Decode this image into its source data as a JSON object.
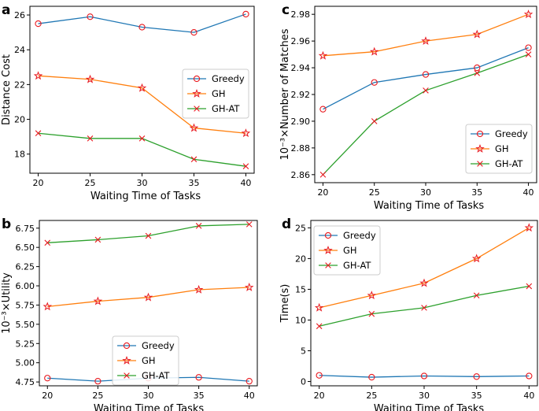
{
  "colors": {
    "Greedy": "#1f77b4",
    "GH": "#ff7f0e",
    "GH-AT": "#2ca02c",
    "marker": "#e8191f"
  },
  "chart_data": [
    {
      "panel": "a",
      "type": "line",
      "x": [
        20,
        25,
        30,
        35,
        40
      ],
      "xticks": [
        "20",
        "25",
        "30",
        "35",
        "40"
      ],
      "xlim": [
        19.2,
        40.8
      ],
      "ylim": [
        16.9,
        26.5
      ],
      "yticks": [
        18,
        20,
        22,
        24,
        26
      ],
      "ytick_labels": [
        "18",
        "20",
        "22",
        "24",
        "26"
      ],
      "xlabel": "Waiting Time of Tasks",
      "ylabel": "Distance Cost",
      "legend": "center-right",
      "series": [
        {
          "name": "Greedy",
          "marker": "o",
          "values": [
            25.5,
            25.9,
            25.3,
            25.0,
            26.05
          ]
        },
        {
          "name": "GH",
          "marker": "*",
          "values": [
            22.5,
            22.3,
            21.8,
            19.5,
            19.2
          ]
        },
        {
          "name": "GH-AT",
          "marker": "x",
          "values": [
            19.2,
            18.9,
            18.9,
            17.7,
            17.3
          ]
        }
      ]
    },
    {
      "panel": "c",
      "type": "line",
      "x": [
        20,
        25,
        30,
        35,
        40
      ],
      "xticks": [
        "20",
        "25",
        "30",
        "35",
        "40"
      ],
      "xlim": [
        19.2,
        40.8
      ],
      "ylim": [
        2.854,
        2.986
      ],
      "yticks": [
        2.86,
        2.88,
        2.9,
        2.92,
        2.94,
        2.96,
        2.98
      ],
      "ytick_labels": [
        "2.86",
        "2.88",
        "2.90",
        "2.92",
        "2.94",
        "2.96",
        "2.98"
      ],
      "xlabel": "Waiting Time of Tasks",
      "ylabel": "10⁻³×Number of Matches",
      "legend": "lower-right",
      "series": [
        {
          "name": "Greedy",
          "marker": "o",
          "values": [
            2.909,
            2.929,
            2.935,
            2.94,
            2.955
          ]
        },
        {
          "name": "GH",
          "marker": "*",
          "values": [
            2.949,
            2.952,
            2.96,
            2.965,
            2.98
          ]
        },
        {
          "name": "GH-AT",
          "marker": "x",
          "values": [
            2.86,
            2.9,
            2.923,
            2.936,
            2.95
          ]
        }
      ]
    },
    {
      "panel": "b",
      "type": "line",
      "x": [
        20,
        25,
        30,
        35,
        40
      ],
      "xticks": [
        "20",
        "25",
        "30",
        "35",
        "40"
      ],
      "xlim": [
        19.2,
        40.8
      ],
      "ylim": [
        4.7,
        6.85
      ],
      "yticks": [
        4.75,
        5.0,
        5.25,
        5.5,
        5.75,
        6.0,
        6.25,
        6.5,
        6.75
      ],
      "ytick_labels": [
        "4.75",
        "5.00",
        "5.25",
        "5.50",
        "5.75",
        "6.00",
        "6.25",
        "6.50",
        "6.75"
      ],
      "xlabel": "Waiting Time of Tasks",
      "ylabel": "10⁻³×Utility",
      "legend": "bottom-center",
      "series": [
        {
          "name": "Greedy",
          "marker": "o",
          "values": [
            4.8,
            4.76,
            4.8,
            4.81,
            4.76
          ]
        },
        {
          "name": "GH",
          "marker": "*",
          "values": [
            5.73,
            5.8,
            5.85,
            5.95,
            5.98
          ]
        },
        {
          "name": "GH-AT",
          "marker": "x",
          "values": [
            6.56,
            6.6,
            6.65,
            6.78,
            6.8
          ]
        }
      ]
    },
    {
      "panel": "d",
      "type": "line",
      "x": [
        20,
        25,
        30,
        35,
        40
      ],
      "xticks": [
        "20",
        "25",
        "30",
        "35",
        "40"
      ],
      "xlim": [
        19.2,
        40.8
      ],
      "ylim": [
        -0.7,
        26.2
      ],
      "yticks": [
        0,
        5,
        10,
        15,
        20,
        25
      ],
      "ytick_labels": [
        "0",
        "5",
        "10",
        "15",
        "20",
        "25"
      ],
      "xlabel": "Waiting Time of Tasks",
      "ylabel": "Time(s)",
      "legend": "top-left",
      "series": [
        {
          "name": "Greedy",
          "marker": "o",
          "values": [
            1.0,
            0.7,
            0.9,
            0.8,
            0.9
          ]
        },
        {
          "name": "GH",
          "marker": "*",
          "values": [
            12.0,
            14.0,
            16.0,
            20.0,
            25.0
          ]
        },
        {
          "name": "GH-AT",
          "marker": "x",
          "values": [
            9.0,
            11.0,
            12.0,
            14.0,
            15.5
          ]
        }
      ]
    }
  ]
}
